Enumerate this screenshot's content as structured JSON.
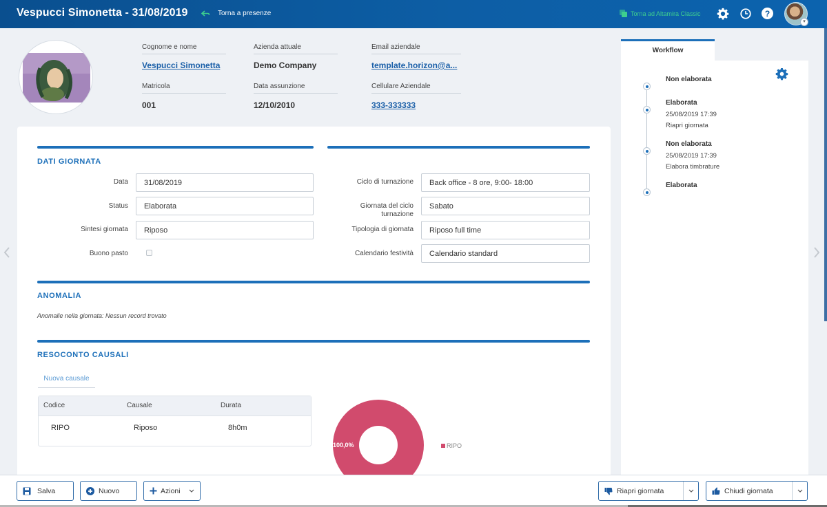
{
  "header": {
    "title": "Vespucci Simonetta - 31/08/2019",
    "back_label": "Torna a presenze",
    "classic_label": "Torna ad Altamira Classic",
    "help_glyph": "?"
  },
  "employee": {
    "fields": [
      {
        "label": "Cognome e nome",
        "value": "Vespucci Simonetta"
      },
      {
        "label": "Azienda attuale",
        "value": "Demo Company"
      },
      {
        "label": "Email aziendale",
        "value": "template.horizon@a..."
      },
      {
        "label": "Matricola",
        "value": "001"
      },
      {
        "label": "Data assunzione",
        "value": "12/10/2010"
      },
      {
        "label": "Cellulare Aziendale",
        "value": "333-333333"
      }
    ]
  },
  "dati_giornata": {
    "title": "DATI GIORNATA",
    "left": [
      {
        "label": "Data",
        "value": "31/08/2019"
      },
      {
        "label": "Status",
        "value": "Elaborata"
      },
      {
        "label": "Sintesi giornata",
        "value": "Riposo"
      },
      {
        "label": "Buono pasto",
        "checked": false
      }
    ],
    "right": [
      {
        "label": "Ciclo di turnazione",
        "value": "Back office - 8 ore, 9:00- 18:00"
      },
      {
        "label": "Giornata del ciclo turnazione",
        "value": "Sabato"
      },
      {
        "label": "Tipologia di giornata",
        "value": "Riposo full time"
      },
      {
        "label": "Calendario festività",
        "value": "Calendario standard"
      }
    ]
  },
  "anomalia": {
    "title": "ANOMALIA",
    "note": "Anomalie nella giornata: Nessun record trovato"
  },
  "resoconto": {
    "title": "RESOCONTO CAUSALI",
    "new_label": "Nuova causale",
    "columns": [
      "Codice",
      "Causale",
      "Durata"
    ],
    "rows": [
      {
        "codice": "RIPO",
        "causale": "Riposo",
        "durata": "8h0m"
      }
    ]
  },
  "chart_data": {
    "type": "pie",
    "categories": [
      "RIPO"
    ],
    "values": [
      100.0
    ],
    "labels": [
      "100,0%"
    ],
    "legend": [
      "RIPO"
    ],
    "colors": [
      "#d14b6d"
    ],
    "title": "",
    "legend_position": "right"
  },
  "workflow": {
    "tab_label": "Workflow",
    "steps": [
      {
        "status": "Non elaborata",
        "date": "",
        "action": ""
      },
      {
        "status": "Elaborata",
        "date": "25/08/2019 17:39",
        "action": "Riapri giornata"
      },
      {
        "status": "Non elaborata",
        "date": "25/08/2019 17:39",
        "action": "Elabora timbrature"
      },
      {
        "status": "Elaborata",
        "date": "",
        "action": ""
      }
    ]
  },
  "toolbar": {
    "save_label": "Salva",
    "new_label": "Nuovo",
    "actions_label": "Azioni",
    "reopen_label": "Riapri giornata",
    "close_label": "Chiudi giornata"
  },
  "colors": {
    "primary": "#1c6fb9",
    "header": "#0c5aa0",
    "accent_green": "#3ecf8e",
    "chart": "#d14b6d"
  }
}
